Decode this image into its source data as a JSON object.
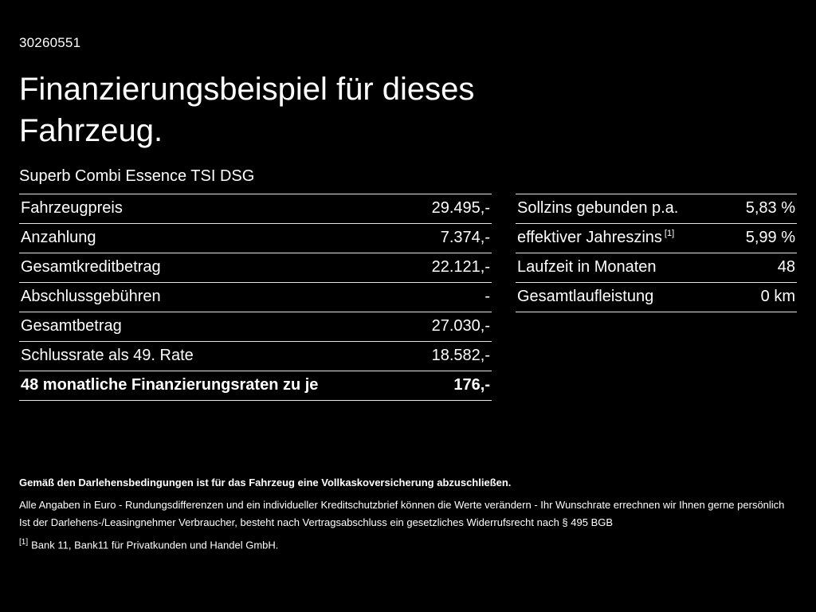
{
  "doc_id": "30260551",
  "title": "Finanzierungsbeispiel für dieses Fahrzeug.",
  "subtitle": "Superb Combi Essence TSI DSG",
  "left_table": {
    "rows": [
      {
        "label": "Fahrzeugpreis",
        "value": "29.495,-"
      },
      {
        "label": "Anzahlung",
        "value": "7.374,-"
      },
      {
        "label": "Gesamtkreditbetrag",
        "value": "22.121,-"
      },
      {
        "label": "Abschlussgebühren",
        "value": "-"
      },
      {
        "label": "Gesamtbetrag",
        "value": "27.030,-"
      },
      {
        "label": "Schlussrate als 49. Rate",
        "value": "18.582,-"
      },
      {
        "label": "48 monatliche Finanzierungsraten zu je",
        "value": "176,-"
      }
    ]
  },
  "right_table": {
    "rows": [
      {
        "label": "Sollzins gebunden p.a.",
        "value": "5,83 %"
      },
      {
        "label": "effektiver Jahreszins",
        "sup": "[1]",
        "value": "5,99 %"
      },
      {
        "label": "Laufzeit in Monaten",
        "value": "48"
      },
      {
        "label": "Gesamtlaufleistung",
        "value": "0 km"
      }
    ]
  },
  "footer": {
    "bold_line": "Gemäß den Darlehensbedingungen ist für das Fahrzeug eine Vollkaskoversicherung abzuschließen.",
    "line1": "Alle Angaben in Euro - Rundungsdifferenzen und ein individueller Kreditschutzbrief können die Werte verändern - Ihr Wunschrate errechnen wir Ihnen gerne persönlich",
    "line2": "Ist der Darlehens-/Leasingnehmer Verbraucher, besteht nach Vertragsabschluss ein gesetzliches Widerrufsrecht nach § 495 BGB",
    "note_marker": "[1]",
    "note_text": "Bank 11, Bank11 für Privatkunden und Handel GmbH."
  },
  "colors": {
    "background": "#000000",
    "text": "#ffffff",
    "divider": "#e6e6e6"
  }
}
